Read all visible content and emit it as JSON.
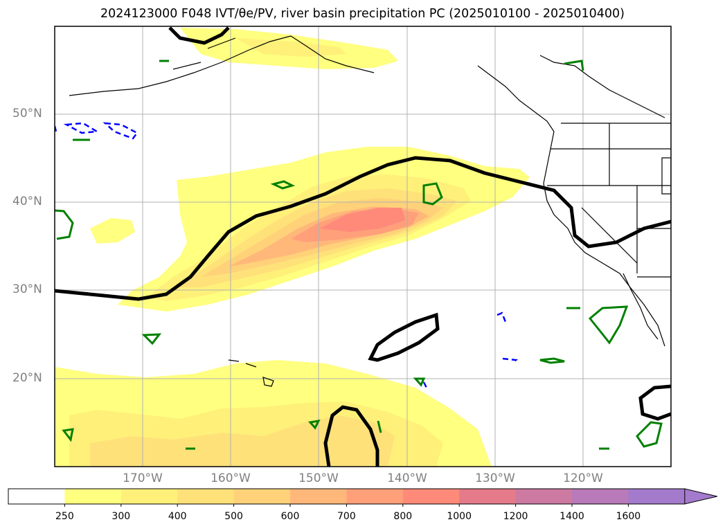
{
  "title": "2024123000 F048 IVT/θe/PV, river basin precipitation PC (2025010100 - 2025010400)",
  "map": {
    "lat_labels": [
      "50°N",
      "40°N",
      "30°N",
      "20°N"
    ],
    "lon_labels": [
      "170°W",
      "160°W",
      "150°W",
      "140°W",
      "130°W",
      "120°W"
    ],
    "grid": true,
    "extent": {
      "lon": [
        -180,
        -110
      ],
      "lat": [
        10,
        60
      ]
    },
    "fill_field": "IVT",
    "contour_colors": {
      "theta_e": "#000000",
      "pv_positive": "#008000",
      "pv_negative": "#0000ff"
    }
  },
  "colorbar": {
    "levels": [
      "250",
      "300",
      "400",
      "500",
      "600",
      "700",
      "800",
      "1000",
      "1200",
      "1400",
      "1600"
    ],
    "colors": [
      "#ffffff",
      "#ffff80",
      "#fff07a",
      "#ffe17a",
      "#ffd27a",
      "#ffb87a",
      "#ffa07a",
      "#ff8a7a",
      "#e47a8a",
      "#cc7aa2",
      "#b87ab8",
      "#a47acc"
    ],
    "extend": "max"
  }
}
